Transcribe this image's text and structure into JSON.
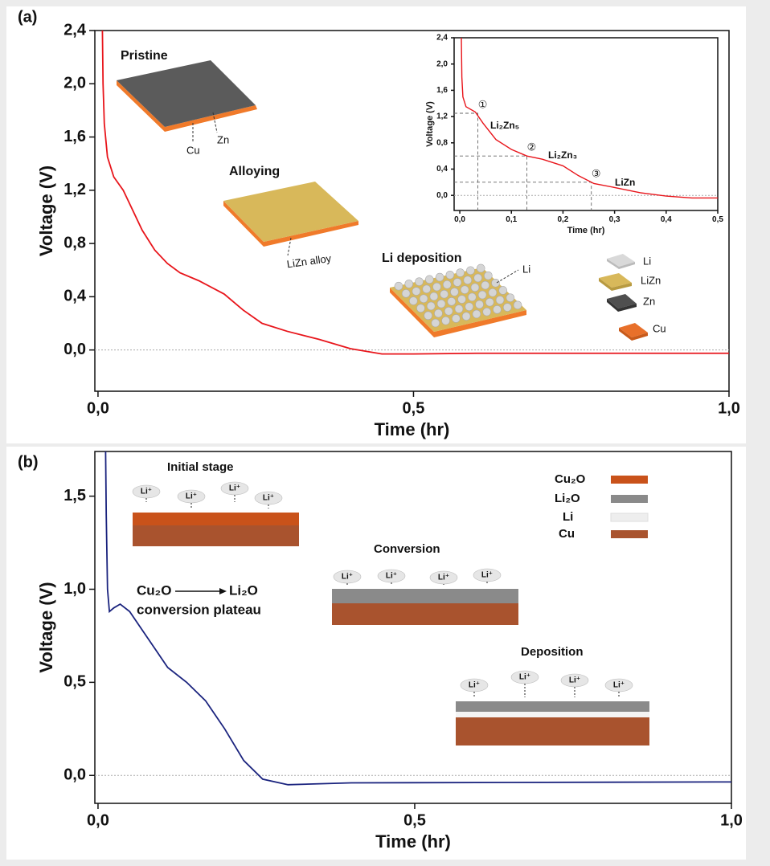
{
  "chart_data": [
    {
      "type": "line",
      "panel_label": "(a)",
      "x_label": "Time (hr)",
      "y_label": "Voltage (V)",
      "xlim": [
        -0.005,
        1.0
      ],
      "ylim": [
        -0.31,
        2.4
      ],
      "xticks": [
        {
          "value": 0,
          "label": "0,0"
        },
        {
          "value": 0.5,
          "label": "0,5"
        },
        {
          "value": 1.0,
          "label": "1,0"
        }
      ],
      "yticks": [
        {
          "value": 0,
          "label": "0,0"
        },
        {
          "value": 0.4,
          "label": "0,4"
        },
        {
          "value": 0.8,
          "label": "0,8"
        },
        {
          "value": 1.2,
          "label": "1,2"
        },
        {
          "value": 1.6,
          "label": "1,6"
        },
        {
          "value": 2.0,
          "label": "2,0"
        },
        {
          "value": 2.4,
          "label": "2,4"
        }
      ],
      "hline": 0,
      "color": "#e8151b",
      "x": [
        0.007,
        0.008,
        0.01,
        0.015,
        0.025,
        0.04,
        0.05,
        0.07,
        0.09,
        0.11,
        0.13,
        0.16,
        0.2,
        0.23,
        0.26,
        0.3,
        0.35,
        0.4,
        0.45,
        0.5,
        0.6,
        0.8,
        1.0
      ],
      "values": [
        2.4,
        2.0,
        1.7,
        1.45,
        1.3,
        1.2,
        1.1,
        0.9,
        0.75,
        0.65,
        0.58,
        0.52,
        0.42,
        0.3,
        0.2,
        0.14,
        0.08,
        0.01,
        -0.03,
        -0.03,
        -0.025,
        -0.025,
        -0.025
      ],
      "annotations": [
        "Pristine",
        "Cu",
        "Zn",
        "Alloying",
        "LiZn alloy",
        "Li deposition",
        "Li"
      ],
      "legend": [
        "Li",
        "LiZn",
        "Zn",
        "Cu"
      ]
    },
    {
      "type": "line",
      "x_label": "Time (hr)",
      "y_label": "Voltage (V)",
      "xlim": [
        -0.011,
        0.5
      ],
      "ylim": [
        -0.23,
        2.4
      ],
      "xticks": [
        {
          "value": 0,
          "label": "0,0"
        },
        {
          "value": 0.1,
          "label": "0,1"
        },
        {
          "value": 0.2,
          "label": "0,2"
        },
        {
          "value": 0.3,
          "label": "0,3"
        },
        {
          "value": 0.4,
          "label": "0,4"
        },
        {
          "value": 0.5,
          "label": "0,5"
        }
      ],
      "yticks": [
        {
          "value": 0,
          "label": "0,0"
        },
        {
          "value": 0.4,
          "label": "0,4"
        },
        {
          "value": 0.8,
          "label": "0,8"
        },
        {
          "value": 1.2,
          "label": "1,2"
        },
        {
          "value": 1.6,
          "label": "1,6"
        },
        {
          "value": 2.0,
          "label": "2,0"
        },
        {
          "value": 2.4,
          "label": "2,4"
        }
      ],
      "hline": 0,
      "color": "#e8151b",
      "x": [
        0.003,
        0.004,
        0.006,
        0.012,
        0.03,
        0.045,
        0.07,
        0.1,
        0.13,
        0.16,
        0.2,
        0.23,
        0.26,
        0.3,
        0.35,
        0.4,
        0.45,
        0.5
      ],
      "values": [
        2.4,
        1.8,
        1.5,
        1.35,
        1.27,
        1.1,
        0.85,
        0.7,
        0.6,
        0.55,
        0.45,
        0.3,
        0.18,
        0.12,
        0.04,
        -0.01,
        -0.04,
        -0.04
      ],
      "markers": [
        {
          "label": "①",
          "x": 0.035,
          "y": 1.25
        },
        {
          "label": "②",
          "x": 0.13,
          "y": 0.6
        },
        {
          "label": "③",
          "x": 0.255,
          "y": 0.2
        }
      ],
      "phase_labels": [
        "Li₂Zn₅",
        "Li₂Zn₃",
        "LiZn"
      ]
    },
    {
      "type": "line",
      "panel_label": "(b)",
      "x_label": "Time (hr)",
      "y_label": "Voltage (V)",
      "xlim": [
        -0.005,
        1.0
      ],
      "ylim": [
        -0.15,
        1.74
      ],
      "xticks": [
        {
          "value": 0,
          "label": "0,0"
        },
        {
          "value": 0.5,
          "label": "0,5"
        },
        {
          "value": 1.0,
          "label": "1,0"
        }
      ],
      "yticks": [
        {
          "value": 0,
          "label": "0,0"
        },
        {
          "value": 0.5,
          "label": "0,5"
        },
        {
          "value": 1.0,
          "label": "1,0"
        },
        {
          "value": 1.5,
          "label": "1,5"
        }
      ],
      "hline": 0,
      "color": "#1a237e",
      "x": [
        0.012,
        0.013,
        0.015,
        0.018,
        0.025,
        0.035,
        0.05,
        0.07,
        0.09,
        0.11,
        0.14,
        0.17,
        0.2,
        0.23,
        0.26,
        0.3,
        0.4,
        1.0
      ],
      "values": [
        1.74,
        1.4,
        1.0,
        0.88,
        0.9,
        0.92,
        0.88,
        0.78,
        0.68,
        0.58,
        0.5,
        0.4,
        0.25,
        0.08,
        -0.02,
        -0.05,
        -0.04,
        -0.035
      ],
      "annotations": [
        "Initial stage",
        "Conversion",
        "Deposition",
        "Cu₂O",
        "Li₂O",
        "conversion plateau"
      ],
      "ion_label": "Li⁺",
      "legend": [
        {
          "name": "Cu₂O",
          "color": "#c9521a"
        },
        {
          "name": "Li₂O",
          "color": "#8a8a8a"
        },
        {
          "name": "Li",
          "color": "#eeeeee"
        },
        {
          "name": "Cu",
          "color": "#a9532e"
        }
      ]
    }
  ]
}
